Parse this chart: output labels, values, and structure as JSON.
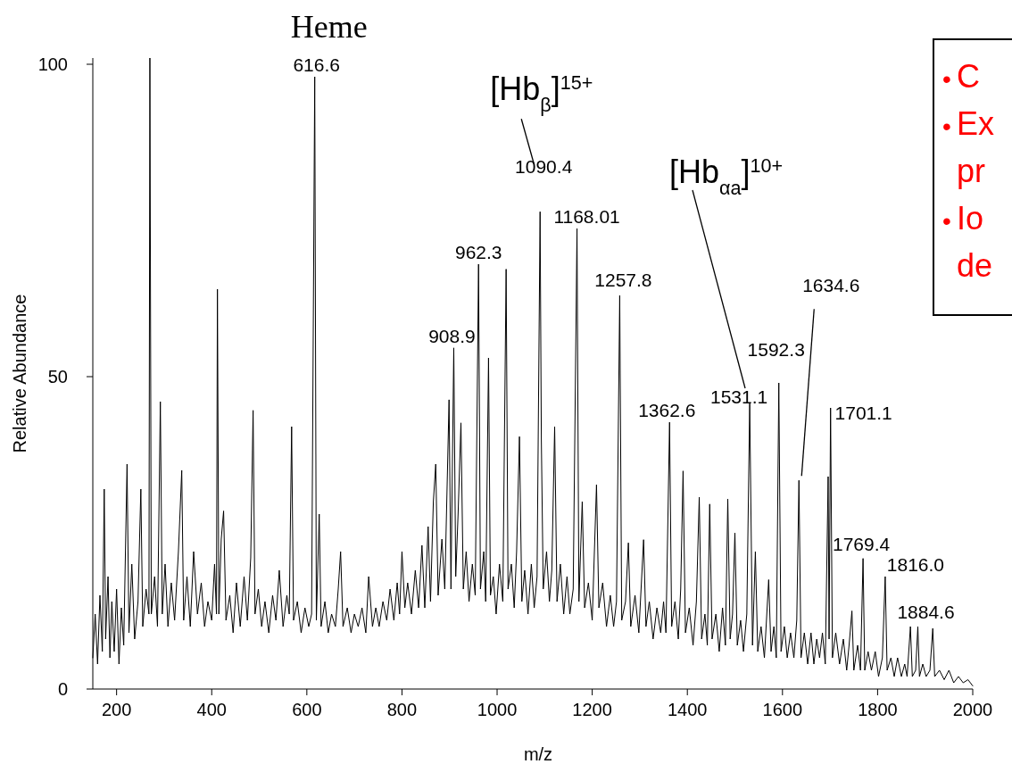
{
  "chart_data": {
    "type": "line",
    "xlabel": "m/z",
    "ylabel": "Relative Abundance",
    "xlim": [
      150,
      2000
    ],
    "xticks": [
      200,
      400,
      600,
      800,
      1000,
      1200,
      1400,
      1600,
      1800,
      2000
    ],
    "ylim": [
      0,
      101
    ],
    "yticks": [
      0,
      50,
      100
    ],
    "grid": false,
    "legend": false,
    "marker": "none",
    "line_style": "solid",
    "series": [
      {
        "color": "#000000",
        "x": [
          150,
          155,
          160,
          165,
          170,
          174,
          177,
          182,
          186,
          190,
          195,
          200,
          205,
          210,
          215,
          222,
          226,
          232,
          238,
          245,
          251,
          255,
          262,
          268,
          270,
          273,
          280,
          286,
          292,
          296,
          302,
          308,
          315,
          322,
          330,
          337,
          341,
          348,
          355,
          362,
          370,
          378,
          385,
          392,
          400,
          406,
          410,
          412,
          415,
          420,
          425,
          430,
          438,
          445,
          452,
          460,
          468,
          475,
          482,
          487,
          491,
          498,
          505,
          512,
          520,
          528,
          535,
          542,
          550,
          558,
          563,
          568,
          572,
          580,
          588,
          596,
          604,
          610,
          616.6,
          620,
          626,
          630,
          638,
          645,
          652,
          660,
          666,
          671,
          676,
          685,
          693,
          700,
          708,
          716,
          724,
          730,
          738,
          745,
          752,
          760,
          768,
          775,
          783,
          790,
          795,
          800,
          806,
          812,
          820,
          828,
          835,
          842,
          848,
          855,
          860,
          866,
          871,
          876,
          884,
          890,
          899,
          903,
          908.9,
          913,
          918,
          924,
          929,
          935,
          941,
          948,
          954,
          961,
          965,
          972,
          976,
          982,
          986,
          992,
          998,
          1005,
          1012,
          1019,
          1023,
          1030,
          1036,
          1041,
          1047,
          1052,
          1058,
          1065,
          1072,
          1078,
          1084,
          1090.4,
          1093,
          1097,
          1104,
          1110,
          1115,
          1121,
          1126,
          1133,
          1140,
          1147,
          1153,
          1160,
          1168.01,
          1172,
          1179,
          1184,
          1192,
          1200,
          1209,
          1214,
          1222,
          1230,
          1238,
          1245,
          1251,
          1257.8,
          1262,
          1270,
          1276,
          1281,
          1290,
          1298,
          1308,
          1313,
          1320,
          1328,
          1336,
          1344,
          1350,
          1355,
          1362.6,
          1367,
          1374,
          1381,
          1386,
          1391,
          1396,
          1404,
          1412,
          1419,
          1425,
          1430,
          1437,
          1442,
          1447,
          1452,
          1460,
          1467,
          1474,
          1480,
          1485,
          1490,
          1495,
          1500,
          1505,
          1512,
          1518,
          1525,
          1531.1,
          1537,
          1543,
          1548,
          1555,
          1562,
          1571,
          1576,
          1582,
          1587,
          1592.3,
          1597,
          1604,
          1610,
          1617,
          1624,
          1630,
          1634.6,
          1639,
          1646,
          1653,
          1660,
          1666,
          1672,
          1678,
          1684,
          1690,
          1696,
          1698,
          1701.1,
          1705,
          1712,
          1720,
          1728,
          1735,
          1740,
          1746,
          1750,
          1758,
          1764,
          1769.4,
          1773,
          1780,
          1787,
          1795,
          1802,
          1810,
          1816,
          1820,
          1828,
          1835,
          1842,
          1850,
          1857,
          1862,
          1869,
          1873,
          1880,
          1884.6,
          1888,
          1895,
          1902,
          1910,
          1916,
          1920,
          1930,
          1940,
          1950,
          1960,
          1970,
          1980,
          1990,
          2000
        ],
        "values": [
          5,
          12,
          4,
          15,
          6,
          32,
          8,
          18,
          5,
          14,
          6,
          16,
          4,
          13,
          7,
          36,
          9,
          20,
          8,
          14,
          32,
          10,
          16,
          12,
          101,
          12,
          18,
          10,
          46,
          12,
          20,
          10,
          17,
          11,
          22,
          35,
          11,
          18,
          10,
          22,
          12,
          17,
          10,
          14,
          11,
          20,
          12,
          64,
          12,
          24,
          28.5,
          11,
          15,
          9,
          17,
          10,
          18,
          11,
          21,
          44.6,
          12,
          16,
          10,
          14,
          9,
          15,
          11,
          19,
          10,
          15,
          12,
          42,
          11,
          14,
          9,
          13,
          10,
          12,
          98,
          11,
          28,
          10,
          14,
          9,
          12,
          10,
          16,
          22,
          10,
          13,
          9,
          12,
          10,
          13,
          9,
          18,
          10,
          13,
          10,
          14,
          11,
          16,
          11,
          17,
          12,
          22,
          13,
          17,
          12,
          19,
          13,
          23,
          13,
          26,
          14,
          30,
          36,
          15,
          24,
          16,
          46.3,
          16,
          54.6,
          18,
          28,
          42.6,
          16,
          22,
          14,
          20,
          15,
          68,
          16,
          22,
          14,
          53,
          15,
          18,
          12,
          20,
          14,
          67.2,
          16,
          20,
          13,
          22,
          40.4,
          14,
          19,
          12,
          20,
          13,
          18,
          76.4,
          40,
          16,
          22,
          14,
          19,
          42,
          14,
          20,
          12,
          18,
          12,
          16,
          73.7,
          14,
          30,
          13,
          17,
          11,
          32.7,
          13,
          17,
          10,
          15,
          10,
          14,
          63,
          11,
          14,
          23.4,
          10,
          15,
          9,
          23.9,
          10,
          14,
          8,
          13,
          9,
          14,
          9,
          42.7,
          10,
          14,
          8,
          16,
          34.9,
          9,
          13,
          7,
          14,
          30.7,
          8,
          12,
          7,
          29.6,
          8,
          12,
          6,
          13,
          7,
          30.4,
          8,
          12,
          25,
          7,
          11,
          6,
          12,
          45.7,
          7,
          22,
          6,
          10,
          5,
          17.5,
          6,
          10,
          5,
          49,
          6,
          10,
          5,
          9,
          5,
          11,
          33.4,
          5,
          9,
          4,
          9,
          4,
          8,
          5,
          9,
          4,
          34,
          8,
          45,
          5,
          9,
          4,
          8,
          3,
          7,
          12.5,
          3,
          7,
          3,
          20.9,
          3,
          6,
          3,
          6,
          2,
          5,
          18,
          3,
          5,
          2,
          5,
          2,
          4,
          2,
          10,
          2,
          3,
          10,
          2,
          4,
          2,
          3,
          9.7,
          2,
          3,
          1.5,
          3,
          1,
          2,
          1,
          1.5,
          0.5
        ]
      }
    ],
    "annotations": [
      {
        "text": "Heme",
        "x": 616.6,
        "y": 98
      },
      {
        "text": "616.6",
        "x": 616.6,
        "y": 98
      },
      {
        "text": "[Hb$_{β}$]$^{15+}$",
        "x": 1090.4,
        "y": 76.4
      },
      "[Hb$_{αa}$]$^{10+}$",
      {
        "text": "908.9",
        "x": 908.9,
        "y": 54.6
      },
      {
        "text": "962.3",
        "x": 961,
        "y": 68
      },
      {
        "text": "1090.4",
        "x": 1090.4,
        "y": 76.4
      },
      {
        "text": "1168.01",
        "x": 1168.01,
        "y": 73.7
      },
      {
        "text": "1257.8",
        "x": 1257.8,
        "y": 63
      },
      {
        "text": "1362.6",
        "x": 1362.6,
        "y": 42.7
      },
      {
        "text": "1531.1",
        "x": 1531.1,
        "y": 45.7
      },
      {
        "text": "1592.3",
        "x": 1592.3,
        "y": 49
      },
      {
        "text": "1634.6",
        "x": 1634.6,
        "y": 33.4
      },
      {
        "text": "1701.1",
        "x": 1701.1,
        "y": 45
      },
      {
        "text": "1769.4",
        "x": 1769.4,
        "y": 20.9
      },
      {
        "text": "1816.0",
        "x": 1816,
        "y": 18
      },
      {
        "text": "1884.6",
        "x": 1884.6,
        "y": 10
      },
      "• C\n• Ex\npr\n• Io\nde"
    ]
  }
}
